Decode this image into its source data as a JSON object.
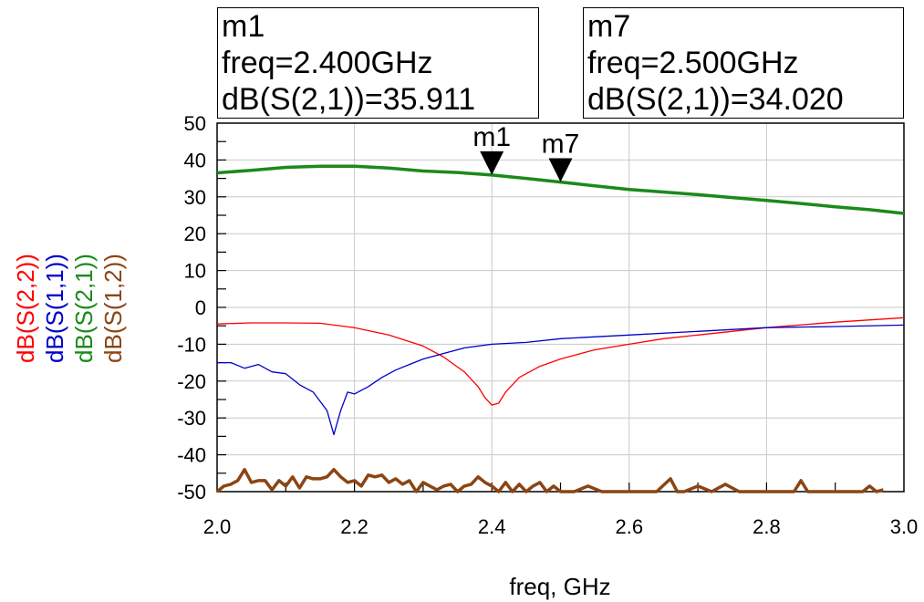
{
  "chart_data": {
    "type": "line",
    "xlabel": "freq, GHz",
    "xlim": [
      2.0,
      3.0
    ],
    "ylim": [
      -50,
      50
    ],
    "xticks": [
      "2.0",
      "2.2",
      "2.4",
      "2.6",
      "2.8",
      "3.0"
    ],
    "yticks": [
      "50",
      "40",
      "30",
      "20",
      "10",
      "0",
      "-10",
      "-20",
      "-30",
      "-40",
      "-50"
    ],
    "grid": true,
    "series": [
      {
        "name": "dB(S(2,2))",
        "color": "#ff0000",
        "x": [
          2.0,
          2.05,
          2.1,
          2.15,
          2.2,
          2.25,
          2.3,
          2.33,
          2.36,
          2.38,
          2.39,
          2.4,
          2.41,
          2.42,
          2.44,
          2.47,
          2.5,
          2.55,
          2.6,
          2.65,
          2.7,
          2.8,
          2.9,
          3.0
        ],
        "values": [
          -4.5,
          -4.2,
          -4.2,
          -4.3,
          -5.5,
          -7.5,
          -10.5,
          -13.5,
          -17.5,
          -21.5,
          -24.5,
          -26.5,
          -26.0,
          -23.0,
          -19.0,
          -16.0,
          -14.0,
          -11.5,
          -10.0,
          -8.5,
          -7.5,
          -5.5,
          -4.0,
          -2.8
        ]
      },
      {
        "name": "dB(S(1,1))",
        "color": "#0000cc",
        "x": [
          2.0,
          2.02,
          2.04,
          2.06,
          2.08,
          2.1,
          2.12,
          2.14,
          2.16,
          2.17,
          2.18,
          2.19,
          2.2,
          2.22,
          2.24,
          2.26,
          2.28,
          2.3,
          2.33,
          2.36,
          2.4,
          2.45,
          2.5,
          2.6,
          2.7,
          2.8,
          2.9,
          3.0
        ],
        "values": [
          -15.0,
          -15.0,
          -16.5,
          -15.5,
          -17.5,
          -18.0,
          -21.0,
          -23.0,
          -28.0,
          -34.5,
          -28.0,
          -23.0,
          -23.5,
          -21.5,
          -19.0,
          -17.0,
          -15.5,
          -14.0,
          -12.5,
          -11.0,
          -10.0,
          -9.5,
          -8.5,
          -7.5,
          -6.5,
          -5.5,
          -5.2,
          -4.8
        ]
      },
      {
        "name": "dB(S(2,1))",
        "color": "#1a8a1a",
        "x": [
          2.0,
          2.05,
          2.1,
          2.15,
          2.2,
          2.25,
          2.3,
          2.35,
          2.4,
          2.45,
          2.5,
          2.55,
          2.6,
          2.65,
          2.7,
          2.75,
          2.8,
          2.85,
          2.9,
          2.95,
          3.0
        ],
        "values": [
          36.5,
          37.2,
          38.0,
          38.3,
          38.3,
          37.8,
          37.0,
          36.6,
          35.911,
          35.0,
          34.02,
          33.0,
          32.0,
          31.3,
          30.6,
          29.8,
          29.0,
          28.2,
          27.3,
          26.5,
          25.5
        ]
      },
      {
        "name": "dB(S(1,2))",
        "color": "#8b4513",
        "x": [
          2.0,
          2.01,
          2.02,
          2.03,
          2.04,
          2.05,
          2.06,
          2.07,
          2.08,
          2.09,
          2.1,
          2.11,
          2.12,
          2.13,
          2.14,
          2.15,
          2.16,
          2.17,
          2.18,
          2.19,
          2.2,
          2.21,
          2.22,
          2.23,
          2.24,
          2.25,
          2.26,
          2.27,
          2.28,
          2.29,
          2.3,
          2.31,
          2.32,
          2.33,
          2.34,
          2.35,
          2.36,
          2.37,
          2.38,
          2.39,
          2.4,
          2.41,
          2.42,
          2.43,
          2.44,
          2.45,
          2.46,
          2.47,
          2.48,
          2.49,
          2.5,
          2.52,
          2.54,
          2.56,
          2.58,
          2.6,
          2.62,
          2.64,
          2.66,
          2.67,
          2.68,
          2.7,
          2.72,
          2.74,
          2.76,
          2.78,
          2.8,
          2.82,
          2.84,
          2.85,
          2.86,
          2.88,
          2.9,
          2.92,
          2.94,
          2.95,
          2.96,
          2.97
        ],
        "values": [
          -50,
          -48.5,
          -48,
          -47,
          -44,
          -47.5,
          -47,
          -47,
          -49.5,
          -47,
          -48.5,
          -46,
          -49,
          -46,
          -46.5,
          -46.5,
          -46,
          -44,
          -46,
          -47.5,
          -47,
          -48.5,
          -45.5,
          -46,
          -45.5,
          -47.5,
          -46.5,
          -48,
          -47,
          -50,
          -47.5,
          -48.5,
          -49.5,
          -48.5,
          -48,
          -50,
          -48.5,
          -48,
          -46,
          -47.5,
          -48.5,
          -50,
          -47.5,
          -50,
          -48,
          -50,
          -48.5,
          -47.5,
          -50,
          -48.5,
          -50,
          -50,
          -48.5,
          -50,
          -50,
          -50,
          -50,
          -50,
          -46.5,
          -50,
          -50,
          -48.5,
          -50,
          -48,
          -50,
          -50,
          -50,
          -50,
          -50,
          -47,
          -50,
          -50,
          -50,
          -50,
          -50,
          -48.5,
          -50,
          -49.5
        ]
      }
    ],
    "markers": [
      {
        "name": "m1",
        "freq": 2.4,
        "value": 35.911,
        "lines": [
          "m1",
          "freq=2.400GHz",
          "dB(S(2,1))=35.911"
        ]
      },
      {
        "name": "m7",
        "freq": 2.5,
        "value": 34.02,
        "lines": [
          "m7",
          "freq=2.500GHz",
          "dB(S(2,1))=34.020"
        ]
      }
    ]
  }
}
